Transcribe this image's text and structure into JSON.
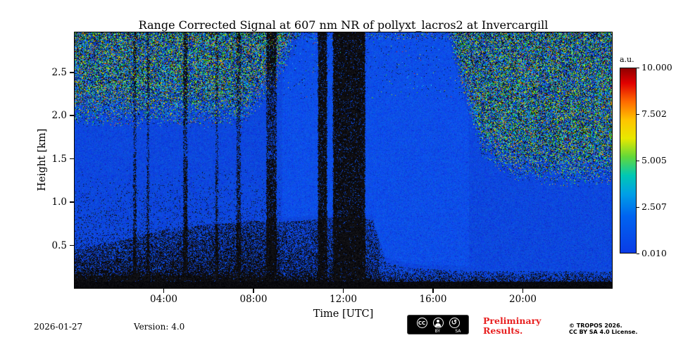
{
  "chart_data": {
    "type": "heatmap",
    "title": "Range Corrected Signal at 607 nm NR of pollyxt_lacros2 at Invercargill",
    "xlabel": "Time [UTC]",
    "ylabel": "Height [km]",
    "x_ticks": [
      "04:00",
      "08:00",
      "12:00",
      "16:00",
      "20:00"
    ],
    "x_tick_hours": [
      4,
      8,
      12,
      16,
      20
    ],
    "x_range_hours": [
      0,
      24
    ],
    "y_ticks": [
      "0.5",
      "1.0",
      "1.5",
      "2.0",
      "2.5"
    ],
    "y_tick_values": [
      0.5,
      1.0,
      1.5,
      2.0,
      2.5
    ],
    "y_range_km": [
      0,
      2.97
    ],
    "colorbar": {
      "label": "a.u.",
      "ticks": [
        "10.000",
        "7.502",
        "5.005",
        "2.507",
        "0.010"
      ],
      "tick_values": [
        10.0,
        7.502,
        5.005,
        2.507,
        0.01
      ],
      "colormap": "jet"
    },
    "features": [
      "Low constant signal (blue, near 0.01 a.u.) over most of the time-height cross-section",
      "Speckled multi-colour background noise above ~2 km before 08:00 UTC and above ~1.3-1.6 km after 18:00 UTC (night-time background)",
      "Full-column black no-signal gaps around 10:50-11:20 and 11:30-13:00 UTC, plus thinner gaps near 02:40, 03:20, 04:55, 06:20, 07:20 and 08:30-09:00 UTC",
      "Dark speckled boundary layer below ~0.8 km between roughly 02:00 and 13:30 UTC",
      "Solid black strip below ~0.08 km (incomplete overlap region) across the whole day"
    ],
    "render": {
      "h_max": 2.97,
      "bottom_solid_km": 0.085,
      "base_rgb": [
        13,
        72,
        222
      ],
      "black_bands": [
        {
          "t0": 2.62,
          "t1": 2.8,
          "d": 0.4
        },
        {
          "t0": 3.22,
          "t1": 3.38,
          "d": 0.35
        },
        {
          "t0": 4.85,
          "t1": 5.08,
          "d": 0.5
        },
        {
          "t0": 6.28,
          "t1": 6.45,
          "d": 0.3
        },
        {
          "t0": 7.22,
          "t1": 7.46,
          "d": 0.38
        },
        {
          "t0": 8.55,
          "t1": 9.05,
          "d": 0.6
        },
        {
          "t0": 10.85,
          "t1": 11.3,
          "d": 0.88
        },
        {
          "t0": 11.52,
          "t1": 13.0,
          "d": 0.92
        }
      ],
      "speckle_boundary": [
        [
          0,
          2.0
        ],
        [
          7.5,
          2.0
        ],
        [
          9.0,
          2.45
        ],
        [
          10.2,
          3.1
        ],
        [
          16.6,
          3.1
        ],
        [
          17.4,
          2.3
        ],
        [
          18.2,
          1.65
        ],
        [
          19.5,
          1.4
        ],
        [
          22,
          1.3
        ],
        [
          24,
          1.35
        ]
      ],
      "bl_dome": [
        [
          0,
          0.45
        ],
        [
          2,
          0.55
        ],
        [
          4,
          0.68
        ],
        [
          6,
          0.74
        ],
        [
          8,
          0.78
        ],
        [
          10,
          0.78
        ],
        [
          12,
          0.84
        ],
        [
          13.3,
          0.8
        ],
        [
          13.9,
          0.3
        ],
        [
          15,
          0.24
        ],
        [
          18,
          0.2
        ],
        [
          24,
          0.2
        ]
      ],
      "palette": [
        [
          "64,160,255",
          2
        ],
        [
          "0,220,220",
          3
        ],
        [
          "40,215,0",
          3
        ],
        [
          "160,225,0",
          2
        ],
        [
          "240,225,0",
          2
        ],
        [
          "255,140,0",
          1
        ],
        [
          "225,30,0",
          1
        ]
      ]
    }
  },
  "footer": {
    "date": "2026-01-27",
    "version": "Version: 4.0",
    "preliminary_line1": "Preliminary",
    "preliminary_line2": "Results.",
    "copyright": "© TROPOS 2026.",
    "license": "CC BY SA 4.0 License.",
    "badge": {
      "cc": "CC",
      "by_label": "BY",
      "sa_label": "SA",
      "sa_glyph": "↺"
    }
  },
  "colors": {
    "base_blue": "#0d48de",
    "preliminary_red": "#e82020"
  }
}
